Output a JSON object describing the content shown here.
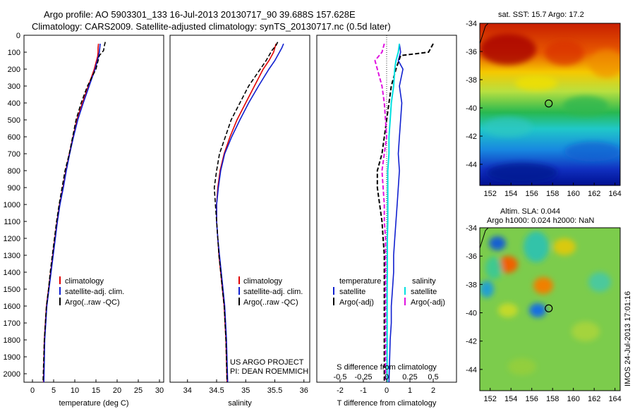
{
  "header": {
    "title_line1": "Argo profile: AO 5903301_133 16-Jul-2013 20130717_90 39.688S 157.628E",
    "title_line2": "Climatology: CARS2009. Satellite-adjusted climatology: synTS_20130717.nc (0.5d later)"
  },
  "colors": {
    "climatology": "#e00000",
    "satellite": "#1020d0",
    "argo": "#000000",
    "sal_satellite": "#00e0e0",
    "sal_argo": "#e010e0"
  },
  "depth_ticks": [
    "0",
    "100",
    "200",
    "300",
    "400",
    "500",
    "600",
    "700",
    "800",
    "900",
    "1000",
    "1100",
    "1200",
    "1300",
    "1400",
    "1500",
    "1600",
    "1700",
    "1800",
    "1900",
    "2000"
  ],
  "chart_data": [
    {
      "type": "line",
      "panel": "temperature",
      "xlabel": "temperature (deg C)",
      "xlim": [
        -2,
        31
      ],
      "ylim": [
        2050,
        0
      ],
      "xticks": [
        "0",
        "5",
        "10",
        "15",
        "20",
        "25",
        "30"
      ],
      "legend": [
        "climatology",
        "satellite-adj. clim.",
        "Argo(..raw -QC)"
      ],
      "series": [
        {
          "name": "climatology",
          "x": [
            15.6,
            15.5,
            15.5,
            15.4,
            14.6,
            13.2,
            11.8,
            10.5,
            9.6,
            8.7,
            7.9,
            7.2,
            6.4,
            5.8,
            5.3,
            4.8,
            4.3,
            3.8,
            3.3,
            2.8,
            2.6
          ],
          "y": [
            50,
            75,
            100,
            125,
            200,
            300,
            400,
            500,
            600,
            700,
            800,
            900,
            1000,
            1100,
            1200,
            1300,
            1400,
            1500,
            1600,
            1800,
            2050
          ]
        },
        {
          "name": "satellite-adj. clim.",
          "x": [
            16.0,
            15.9,
            15.8,
            15.6,
            14.8,
            13.4,
            12.0,
            10.7,
            9.7,
            8.8,
            8.0,
            7.3,
            6.5,
            5.9,
            5.4,
            4.9,
            4.4,
            3.9,
            3.4,
            2.9,
            2.7
          ],
          "y": [
            50,
            75,
            100,
            125,
            200,
            300,
            400,
            500,
            600,
            700,
            800,
            900,
            1000,
            1100,
            1200,
            1300,
            1400,
            1500,
            1600,
            1800,
            2050
          ]
        },
        {
          "name": "Argo(..raw -QC)",
          "x": [
            17.2,
            17.0,
            16.8,
            15.8,
            15.0,
            13.0,
            11.5,
            10.3,
            9.5,
            8.7,
            7.7,
            7.0,
            6.3,
            5.7,
            5.2,
            4.7,
            4.2,
            3.8,
            3.3,
            2.8,
            2.5
          ],
          "y": [
            40,
            60,
            90,
            120,
            200,
            300,
            400,
            500,
            600,
            700,
            800,
            900,
            1000,
            1100,
            1200,
            1300,
            1400,
            1500,
            1600,
            1800,
            2050
          ]
        }
      ]
    },
    {
      "type": "line",
      "panel": "salinity",
      "xlabel": "salinity",
      "xlim": [
        33.7,
        36.1
      ],
      "ylim": [
        2050,
        0
      ],
      "xticks": [
        "34",
        "34.5",
        "35",
        "35.5",
        "36"
      ],
      "legend": [
        "climatology",
        "satellite-adj. clim.",
        "Argo(..raw -QC)"
      ],
      "series": [
        {
          "name": "climatology",
          "x": [
            35.52,
            35.5,
            35.48,
            35.4,
            35.3,
            35.15,
            35.0,
            34.85,
            34.73,
            34.63,
            34.56,
            34.52,
            34.5,
            34.5,
            34.52,
            34.54,
            34.57,
            34.6,
            34.63,
            34.66,
            34.68
          ],
          "y": [
            50,
            75,
            100,
            150,
            200,
            300,
            400,
            500,
            600,
            700,
            800,
            900,
            1000,
            1100,
            1200,
            1300,
            1400,
            1500,
            1600,
            1800,
            2050
          ]
        },
        {
          "name": "satellite-adj. clim.",
          "x": [
            35.65,
            35.62,
            35.58,
            35.5,
            35.4,
            35.22,
            35.05,
            34.9,
            34.76,
            34.64,
            34.57,
            34.53,
            34.5,
            34.5,
            34.52,
            34.55,
            34.58,
            34.61,
            34.64,
            34.67,
            34.69
          ],
          "y": [
            50,
            75,
            100,
            150,
            200,
            300,
            400,
            500,
            600,
            700,
            800,
            900,
            1000,
            1100,
            1200,
            1300,
            1400,
            1500,
            1600,
            1800,
            2050
          ]
        },
        {
          "name": "Argo(..raw -QC)",
          "x": [
            35.55,
            35.52,
            35.45,
            35.35,
            35.25,
            35.05,
            34.9,
            34.75,
            34.65,
            34.55,
            34.5,
            34.46,
            34.48,
            34.5,
            34.52,
            34.54,
            34.57,
            34.6,
            34.63,
            34.66,
            34.68
          ],
          "y": [
            40,
            60,
            90,
            150,
            200,
            300,
            400,
            500,
            600,
            700,
            800,
            900,
            1000,
            1100,
            1200,
            1300,
            1400,
            1500,
            1600,
            1800,
            2050
          ]
        }
      ]
    },
    {
      "type": "line",
      "panel": "difference",
      "xlabel": "T difference from climatology",
      "xlabel_top": "S difference from climatology",
      "xlim": [
        -3,
        3
      ],
      "ylim": [
        2050,
        0
      ],
      "xticks": [
        "-2",
        "-1",
        "0",
        "1",
        "2"
      ],
      "xticks_top": [
        "-0.5",
        "-0.25",
        "0",
        "0.25",
        "0.5"
      ],
      "legend_titles": [
        "temperature",
        "salinity"
      ],
      "legend": [
        "satellite",
        "Argo(-adj)",
        "satellite",
        "Argo(-adj)"
      ],
      "series": [
        {
          "name": "satellite",
          "quantity": "temperature",
          "x": [
            0.55,
            0.6,
            0.5,
            0.7,
            0.55,
            0.65,
            0.6,
            0.55,
            0.5,
            0.55,
            0.5,
            0.45,
            0.4,
            0.35,
            0.3,
            0.3,
            0.25,
            0.2,
            0.2,
            0.15,
            0.1
          ],
          "y": [
            50,
            100,
            150,
            200,
            300,
            400,
            500,
            600,
            700,
            800,
            900,
            1000,
            1100,
            1200,
            1300,
            1400,
            1500,
            1600,
            1700,
            1800,
            2050
          ]
        },
        {
          "name": "Argo(-adj)",
          "quantity": "temperature",
          "x": [
            2.0,
            1.8,
            0.6,
            0.4,
            0.2,
            0.1,
            0.0,
            -0.1,
            -0.2,
            -0.4,
            -0.4,
            -0.3,
            -0.2,
            -0.15,
            -0.1,
            -0.1,
            -0.1,
            -0.1,
            -0.1,
            -0.1,
            -0.1
          ],
          "y": [
            50,
            100,
            120,
            200,
            300,
            400,
            500,
            600,
            700,
            800,
            900,
            1000,
            1100,
            1200,
            1300,
            1400,
            1500,
            1600,
            1700,
            1800,
            2050
          ]
        },
        {
          "name": "satellite",
          "quantity": "salinity",
          "x": [
            0.55,
            0.5,
            0.4,
            0.35,
            0.3,
            0.2,
            0.15,
            0.1,
            0.1,
            0.05,
            0.05,
            0.05,
            0.05,
            0.03,
            0.03,
            0.03,
            0.02,
            0.02,
            0.02,
            0.02,
            0.02
          ],
          "y": [
            50,
            100,
            150,
            200,
            300,
            400,
            500,
            600,
            700,
            800,
            900,
            1000,
            1100,
            1200,
            1300,
            1400,
            1500,
            1600,
            1700,
            1800,
            2050
          ]
        },
        {
          "name": "Argo(-adj)",
          "quantity": "salinity",
          "x": [
            -0.1,
            -0.2,
            -0.5,
            -0.4,
            -0.2,
            -0.1,
            -0.05,
            0.0,
            -0.1,
            -0.2,
            -0.15,
            -0.1,
            -0.1,
            -0.05,
            -0.05,
            -0.05,
            -0.05,
            -0.05,
            -0.05,
            -0.05,
            -0.05
          ],
          "y": [
            50,
            100,
            150,
            200,
            300,
            400,
            500,
            600,
            700,
            800,
            900,
            1000,
            1100,
            1200,
            1300,
            1400,
            1500,
            1600,
            1700,
            1800,
            2050
          ]
        }
      ]
    },
    {
      "type": "heatmap",
      "panel": "sst-map",
      "title": "sat. SST: 15.7  Argo: 17.2",
      "xticks": [
        "152",
        "154",
        "156",
        "158",
        "160",
        "162",
        "164"
      ],
      "yticks": [
        "-34",
        "-36",
        "-38",
        "-40",
        "-42",
        "-44"
      ],
      "xlim": [
        151,
        164.5
      ],
      "ylim": [
        -45.5,
        -34
      ],
      "marker": {
        "lon": 157.628,
        "lat": -39.688
      }
    },
    {
      "type": "heatmap",
      "panel": "sla-map",
      "title_line1": "Altim. SLA: 0.044",
      "title_line2": "Argo h1000: 0.024 h2000: NaN",
      "xticks": [
        "152",
        "154",
        "156",
        "158",
        "160",
        "162",
        "164"
      ],
      "yticks": [
        "-34",
        "-36",
        "-38",
        "-40",
        "-42",
        "-44"
      ],
      "xlim": [
        151,
        164.5
      ],
      "ylim": [
        -45.5,
        -34
      ],
      "marker": {
        "lon": 157.628,
        "lat": -39.688
      }
    }
  ],
  "credits": {
    "project": "US ARGO PROJECT",
    "pi": "PI: DEAN ROEMMICH",
    "timestamp": "IMOS 24-Jul-2013 17:01:16"
  }
}
